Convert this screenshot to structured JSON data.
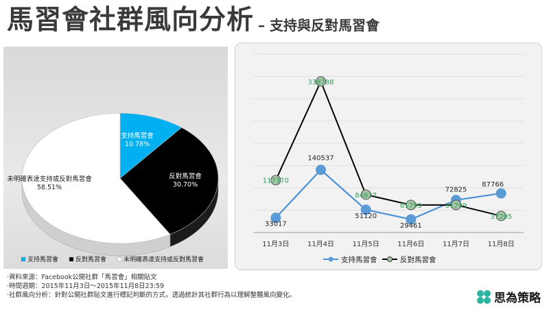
{
  "header": {
    "title": "馬習會社群風向分析",
    "subtitle": "– 支持與反對馬習會"
  },
  "chart_data": [
    {
      "type": "pie",
      "title": "",
      "slices": [
        {
          "label": "支持馬習會",
          "pct_label": "10.78%",
          "value": 10.78,
          "color": "#00b0f0"
        },
        {
          "label": "反對馬習會",
          "pct_label": "30.70%",
          "value": 30.7,
          "color": "#000000"
        },
        {
          "label": "未明確表達支持或反對馬習會",
          "pct_label": "58.51%",
          "value": 58.51,
          "color": "#ffffff"
        }
      ],
      "legend": [
        "支持馬習會",
        "反對馬習會",
        "未明確表達支持或反對馬習會"
      ],
      "legend_placement": "bottom"
    },
    {
      "type": "line",
      "title": "",
      "categories": [
        "11月3日",
        "11月4日",
        "11月5日",
        "11月6日",
        "11月7日",
        "11月8日"
      ],
      "series": [
        {
          "name": "支持馬習會",
          "values": [
            33017,
            140537,
            51120,
            29461,
            72825,
            87766
          ],
          "labels": [
            "33017",
            "140537",
            "51120",
            "29461",
            "72825",
            "87766"
          ],
          "color": "#4a90d9"
        },
        {
          "name": "反對馬習會",
          "values": [
            117370,
            338788,
            84837,
            61799,
            61799,
            37205
          ],
          "labels": [
            "117370",
            "338788",
            "84837",
            "61799",
            "61799",
            "37205"
          ],
          "color": "#000000"
        }
      ],
      "ylim": [
        0,
        400000
      ],
      "grid": true,
      "legend_placement": "bottom"
    }
  ],
  "notes": [
    "·資料來源：Facebook公開社群「馬習會」相關貼文",
    "·時間週期：2015年11月3日～2015年11月8日23:59",
    "·社群風向分析：針對公開社群貼文進行標記判斷的方式，透過統計其社群行為以理解整體風向變化。"
  ],
  "brand": {
    "name": "思為策略",
    "logo_color": "#2bb5a0"
  }
}
